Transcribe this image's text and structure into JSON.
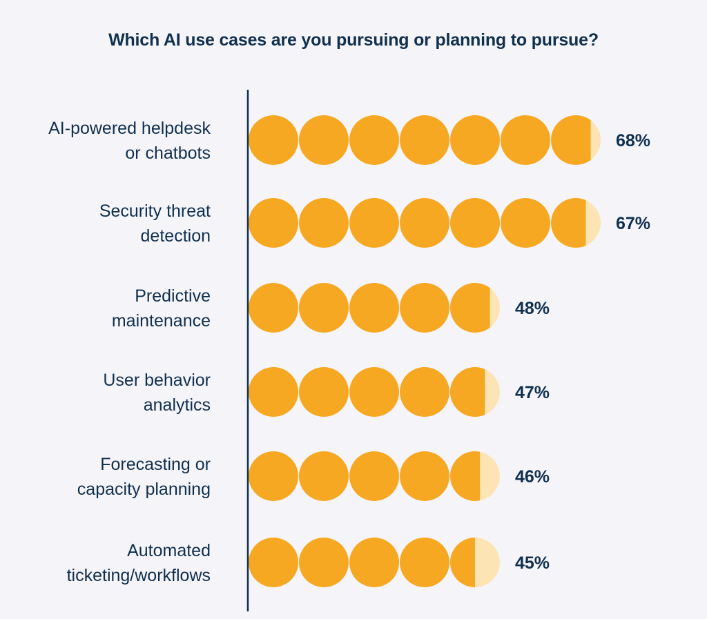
{
  "chart_data": {
    "type": "bar",
    "title": "Which AI use cases are you pursuing or planning to pursue?",
    "categories": [
      [
        "AI-powered helpdesk",
        "or chatbots"
      ],
      [
        "Security threat",
        "detection"
      ],
      [
        "Predictive",
        "maintenance"
      ],
      [
        "User behavior",
        "analytics"
      ],
      [
        "Forecasting or",
        "capacity planning"
      ],
      [
        "Automated",
        "ticketing/workflows"
      ]
    ],
    "values": [
      68,
      67,
      48,
      47,
      46,
      45
    ],
    "value_labels": [
      "68%",
      "67%",
      "48%",
      "47%",
      "46%",
      "45%"
    ],
    "units_per_icon": 10,
    "xlabel": "",
    "ylabel": "",
    "grid": false,
    "colors": {
      "filled": "#f7a823",
      "remainder": "#fde4b5",
      "text": "#10304f",
      "axis": "#10304f",
      "background": "#f5f4f9"
    }
  }
}
